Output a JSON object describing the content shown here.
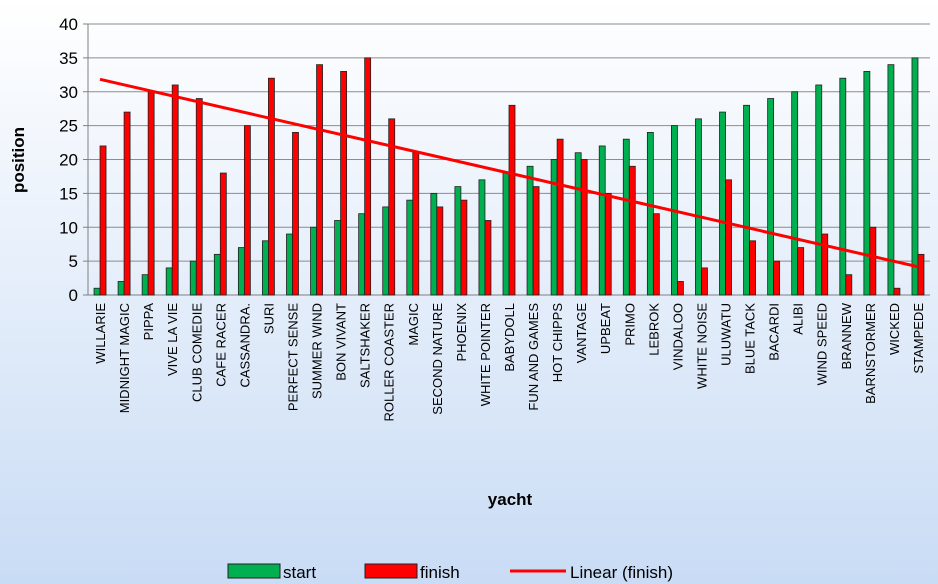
{
  "chart_data": {
    "type": "bar",
    "categories": [
      "WILLARIE",
      "MIDNIGHT MAGIC",
      "PIPPA",
      "VIVE LA VIE",
      "CLUB COMEDIE",
      "CAFE RACER",
      "CASSANDRA.",
      "SURI",
      "PERFECT SENSE",
      "SUMMER WIND",
      "BON VIVANT",
      "SALTSHAKER",
      "ROLLER COASTER",
      "MAGIC",
      "SECOND NATURE",
      "PHOENIX",
      "WHITE POINTER",
      "BABYDOLL",
      "FUN AND GAMES",
      "HOT CHIPPS",
      "VANTAGE",
      "UPBEAT",
      "PRIMO",
      "LEBROK",
      "VINDALOO",
      "WHITE NOISE",
      "ULUWATU",
      "BLUE TACK",
      "BACARDI",
      "ALIBI",
      "WIND SPEED",
      "BRANNEW",
      "BARNSTORMER",
      "WICKED",
      "STAMPEDE"
    ],
    "series": [
      {
        "name": "start",
        "color": "#00b050",
        "values": [
          1,
          2,
          3,
          4,
          5,
          6,
          7,
          8,
          9,
          10,
          11,
          12,
          13,
          14,
          15,
          16,
          17,
          18,
          19,
          20,
          21,
          22,
          23,
          24,
          25,
          26,
          27,
          28,
          29,
          30,
          31,
          32,
          33,
          34,
          35
        ]
      },
      {
        "name": "finish",
        "color": "#ff0000",
        "values": [
          22,
          27,
          30,
          31,
          29,
          18,
          25,
          32,
          24,
          34,
          33,
          35,
          26,
          21,
          13,
          14,
          11,
          28,
          16,
          23,
          20,
          15,
          19,
          12,
          2,
          4,
          17,
          8,
          5,
          7,
          9,
          3,
          10,
          1,
          6
        ]
      }
    ],
    "trendline": {
      "name": "Linear (finish)",
      "color": "#ff0000"
    },
    "xlabel": "yacht",
    "ylabel": "position",
    "ylim": [
      0,
      40
    ],
    "yticks": [
      0,
      5,
      10,
      15,
      20,
      25,
      30,
      35,
      40
    ],
    "grid": true,
    "legend": "bottom"
  }
}
